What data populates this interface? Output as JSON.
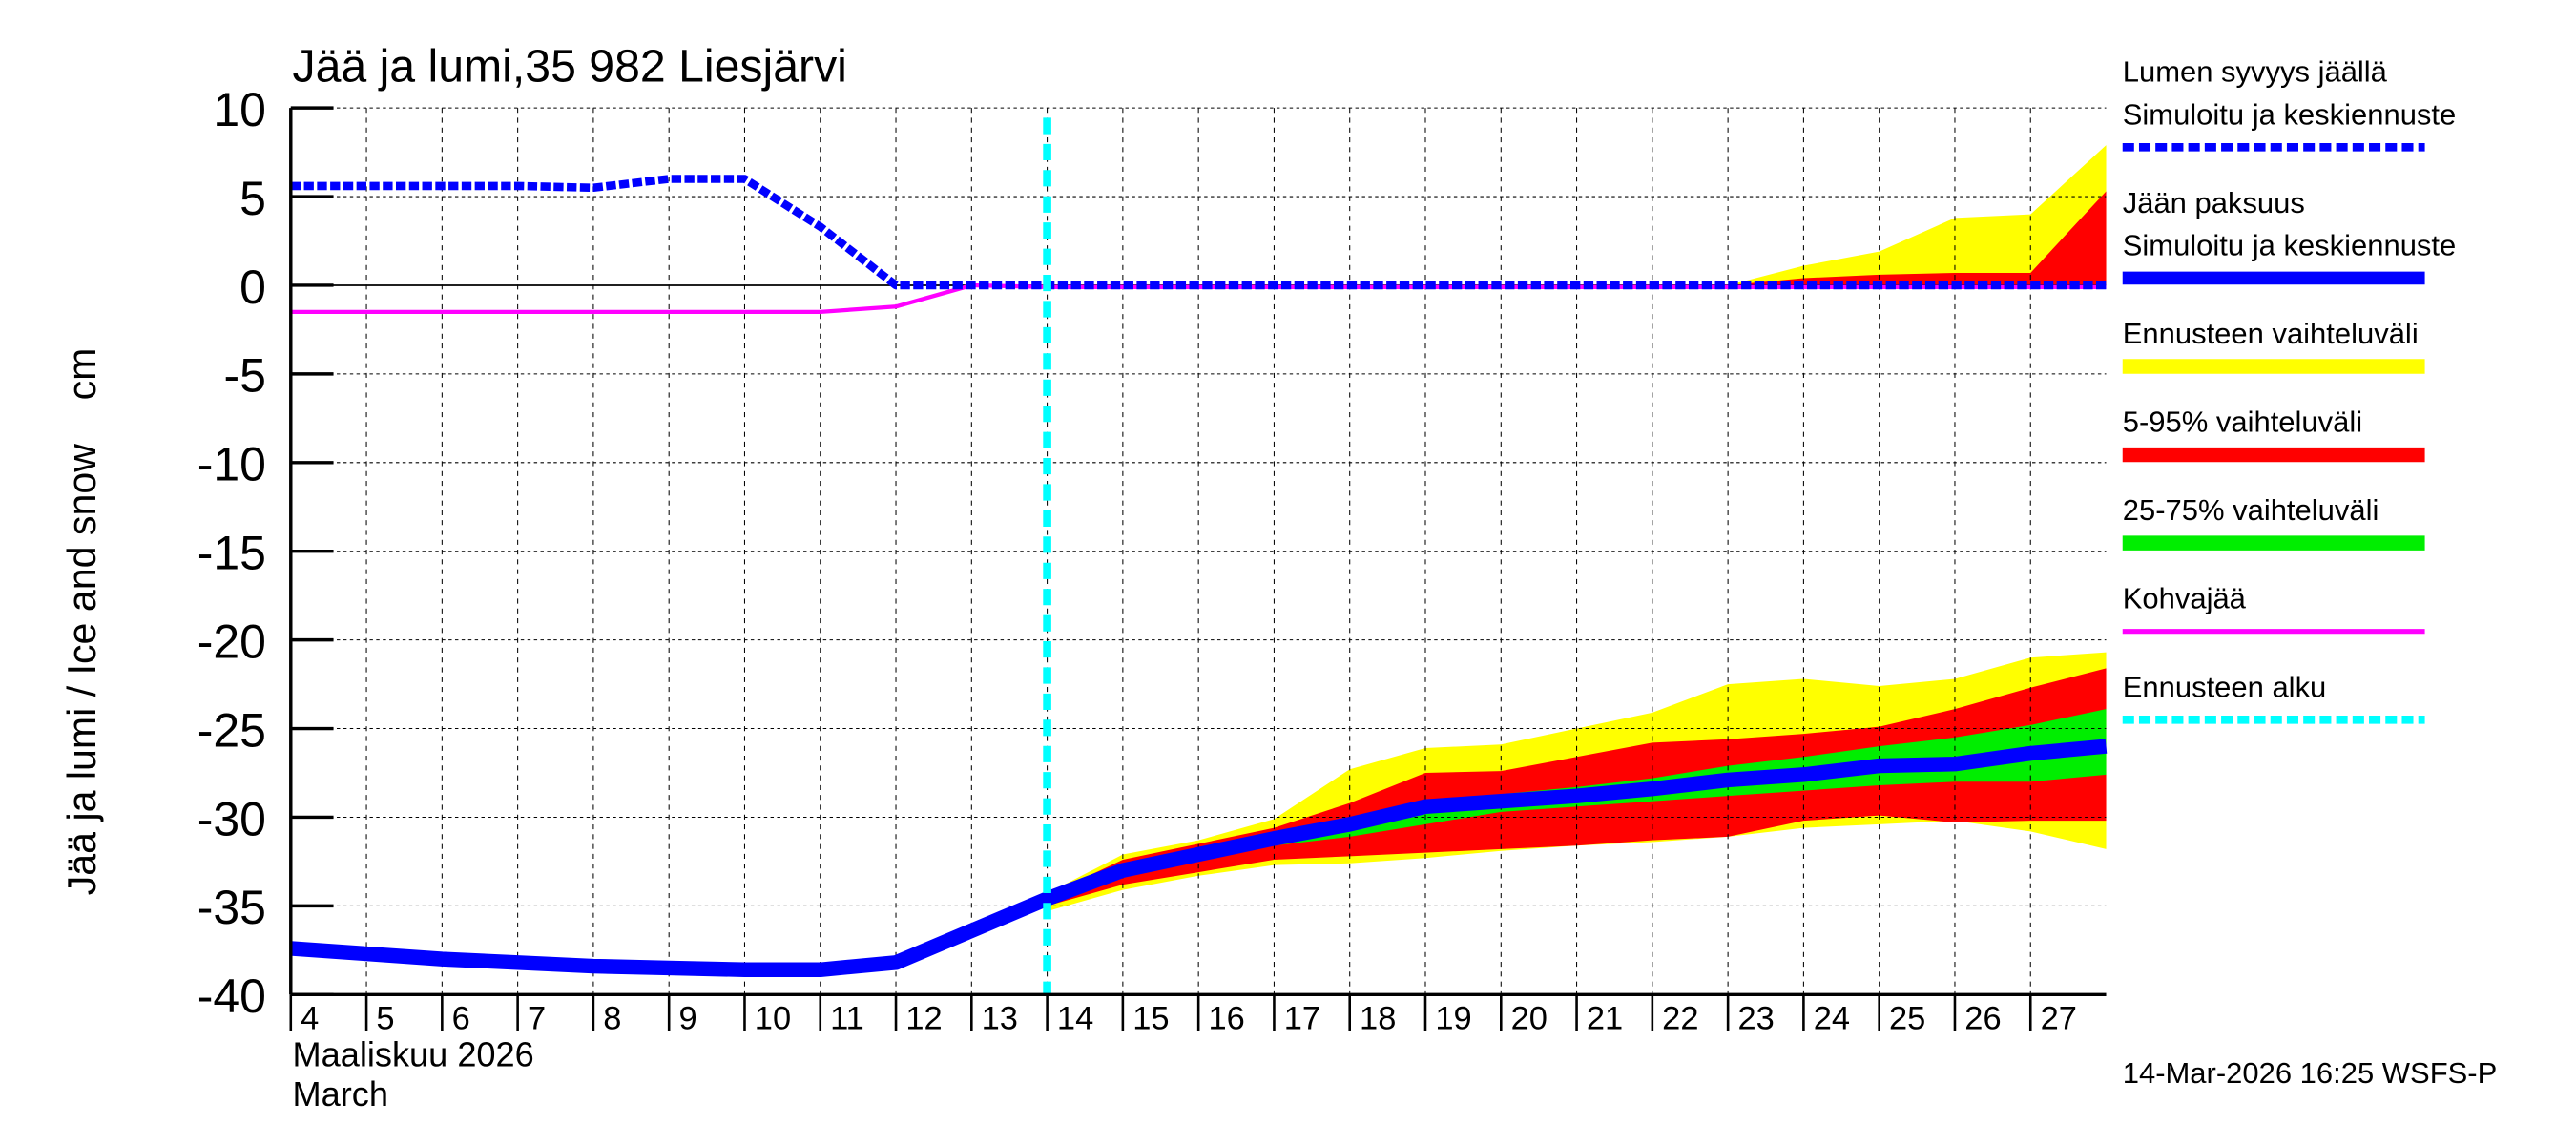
{
  "chart_data": {
    "type": "area",
    "title": "Jää ja lumi,35 982 Liesjärvi",
    "ylabel": "Jää ja lumi / Ice and snow    cm",
    "xlabel_fi": "Maaliskuu 2026",
    "xlabel_en": "March",
    "footer": "14-Mar-2026 16:25 WSFS-P",
    "ylim": [
      -40,
      10
    ],
    "xlim": [
      4,
      28
    ],
    "yticks": [
      10,
      5,
      0,
      -5,
      -10,
      -15,
      -20,
      -25,
      -30,
      -35,
      -40
    ],
    "xticks": [
      4,
      5,
      6,
      7,
      8,
      9,
      10,
      11,
      12,
      13,
      14,
      15,
      16,
      17,
      18,
      19,
      20,
      21,
      22,
      23,
      24,
      25,
      26,
      27
    ],
    "grid": true,
    "forecast_start": 14,
    "legend": {
      "placement": "right",
      "items": [
        {
          "label1": "Lumen syvyys jäällä",
          "label2": "Simuloitu ja keskiennuste",
          "color": "#0000ff",
          "style": "dashed"
        },
        {
          "label1": "Jään paksuus",
          "label2": "Simuloitu ja keskiennuste",
          "color": "#0000ff",
          "style": "thick"
        },
        {
          "label1": "Ennusteen vaihteluväli",
          "color": "#ffff00",
          "style": "band"
        },
        {
          "label1": "5-95% vaihteluväli",
          "color": "#ff0000",
          "style": "band"
        },
        {
          "label1": "25-75% vaihteluväli",
          "color": "#00ee00",
          "style": "band"
        },
        {
          "label1": "Kohvajää",
          "color": "#ff00ff",
          "style": "line"
        },
        {
          "label1": "Ennusteen alku",
          "color": "#00ffff",
          "style": "dashed"
        }
      ]
    },
    "series": {
      "snow_depth": {
        "x": [
          4,
          5,
          6,
          7,
          8,
          9,
          10,
          11,
          12,
          13,
          14,
          15,
          16,
          17,
          18,
          19,
          20,
          21,
          22,
          23,
          24,
          25,
          26,
          27,
          28
        ],
        "y": [
          5.6,
          5.6,
          5.6,
          5.6,
          5.5,
          6.0,
          6.0,
          3.3,
          0,
          0,
          0,
          0,
          0,
          0,
          0,
          0,
          0,
          0,
          0,
          0,
          0,
          0,
          0,
          0,
          0
        ]
      },
      "kohvajaa": {
        "x": [
          4,
          5,
          6,
          7,
          8,
          9,
          10,
          11,
          12,
          13,
          14,
          15,
          16,
          17,
          18,
          19,
          20,
          21,
          22,
          23,
          24,
          25,
          26,
          27,
          28
        ],
        "y": [
          -1.5,
          -1.5,
          -1.5,
          -1.5,
          -1.5,
          -1.5,
          -1.5,
          -1.5,
          -1.2,
          0,
          -0.1,
          -0.1,
          -0.1,
          -0.1,
          -0.1,
          -0.1,
          -0.1,
          -0.1,
          -0.1,
          -0.1,
          -0.1,
          -0.1,
          -0.1,
          -0.1,
          -0.1
        ]
      },
      "ice_thickness": {
        "x": [
          4,
          5,
          6,
          7,
          8,
          9,
          10,
          11,
          12,
          13,
          14,
          15,
          16,
          17,
          18,
          19,
          20,
          21,
          22,
          23,
          24,
          25,
          26,
          27,
          28
        ],
        "y": [
          -37.4,
          -37.7,
          -38.0,
          -38.2,
          -38.4,
          -38.5,
          -38.6,
          -38.6,
          -38.2,
          -36.4,
          -34.6,
          -33.0,
          -32.1,
          -31.2,
          -30.4,
          -29.4,
          -29.1,
          -28.8,
          -28.4,
          -27.9,
          -27.6,
          -27.1,
          -27.0,
          -26.4,
          -26.0
        ]
      },
      "ice_range_full": {
        "x": [
          14,
          15,
          16,
          17,
          18,
          19,
          20,
          21,
          22,
          23,
          24,
          25,
          26,
          27,
          28
        ],
        "upper": [
          -34.3,
          -32.1,
          -31.3,
          -30.1,
          -27.3,
          -26.1,
          -25.9,
          -25.0,
          -24.1,
          -22.5,
          -22.2,
          -22.6,
          -22.2,
          -21.0,
          -20.7
        ],
        "lower": [
          -35.3,
          -34.1,
          -33.3,
          -32.7,
          -32.6,
          -32.3,
          -31.9,
          -31.6,
          -31.4,
          -31.1,
          -30.6,
          -30.4,
          -30.2,
          -30.8,
          -31.8
        ]
      },
      "ice_range_5_95": {
        "x": [
          14,
          15,
          16,
          17,
          18,
          19,
          20,
          21,
          22,
          23,
          24,
          25,
          26,
          27,
          28
        ],
        "upper": [
          -34.4,
          -32.4,
          -31.5,
          -30.6,
          -29.2,
          -27.5,
          -27.4,
          -26.6,
          -25.8,
          -25.6,
          -25.3,
          -24.9,
          -23.9,
          -22.7,
          -21.6
        ],
        "lower": [
          -35.0,
          -33.8,
          -33.1,
          -32.4,
          -32.2,
          -32.0,
          -31.8,
          -31.6,
          -31.3,
          -31.1,
          -30.2,
          -29.9,
          -30.3,
          -30.2,
          -30.2
        ]
      },
      "ice_range_25_75": {
        "x": [
          14,
          15,
          16,
          17,
          18,
          19,
          20,
          21,
          22,
          23,
          24,
          25,
          26,
          27,
          28
        ],
        "upper": [
          -34.5,
          -32.8,
          -32.0,
          -31.2,
          -30.4,
          -29.2,
          -28.7,
          -28.3,
          -27.8,
          -27.1,
          -26.6,
          -26.0,
          -25.5,
          -24.8,
          -23.9
        ],
        "lower": [
          -34.7,
          -33.2,
          -32.3,
          -31.6,
          -31.1,
          -30.4,
          -29.7,
          -29.4,
          -29.1,
          -28.8,
          -28.5,
          -28.2,
          -28.0,
          -28.0,
          -27.6
        ]
      },
      "snow_range_full": {
        "x": [
          23,
          24,
          25,
          26,
          27,
          28
        ],
        "upper": [
          0,
          1.1,
          1.9,
          3.8,
          4.0,
          7.9
        ],
        "lower": [
          0,
          0,
          0,
          0,
          0,
          0
        ]
      },
      "snow_range_5_95": {
        "x": [
          23,
          24,
          25,
          26,
          27,
          28
        ],
        "upper": [
          0,
          0.4,
          0.6,
          0.7,
          0.7,
          5.3
        ],
        "lower": [
          0,
          0,
          0,
          0,
          0,
          0
        ]
      }
    }
  }
}
